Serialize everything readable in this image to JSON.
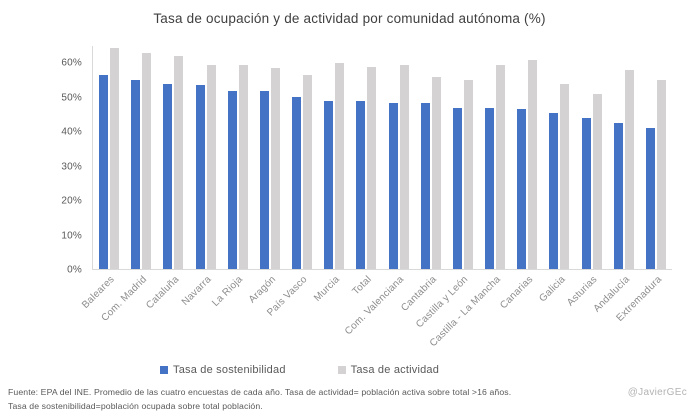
{
  "title": "Tasa de ocupación y de actividad por comunidad autónoma (%)",
  "chart_data": {
    "type": "bar",
    "title": "Tasa de ocupación y de actividad por comunidad autónoma (%)",
    "categories": [
      "Baleares",
      "Com. Madrid",
      "Cataluña",
      "Navarra",
      "La Rioja",
      "Aragón",
      "País Vasco",
      "Murcia",
      "Total",
      "Com. Valenciana",
      "Cantabria",
      "Castilla y León",
      "Castilla - La Mancha",
      "Canarias",
      "Galicia",
      "Asturias",
      "Andalucía",
      "Extremadura"
    ],
    "series": [
      {
        "name": "Tasa de sostenibilidad",
        "color": "#4472C4",
        "values": [
          56.5,
          55,
          54,
          53.5,
          52,
          52,
          50,
          49,
          49,
          48.5,
          48.5,
          47,
          47,
          46.5,
          45.5,
          44,
          42.5,
          41
        ]
      },
      {
        "name": "Tasa de actividad",
        "color": "#D4D2D2",
        "values": [
          64.5,
          63,
          62,
          59.5,
          59.5,
          58.5,
          56.5,
          60,
          59,
          59.5,
          56,
          55,
          59.5,
          61,
          54,
          51,
          58,
          55
        ]
      }
    ],
    "xlabel": "",
    "ylabel": "",
    "ylim": [
      0,
      65
    ],
    "yticks": [
      0,
      10,
      20,
      30,
      40,
      50,
      60
    ],
    "ytick_labels": [
      "0%",
      "10%",
      "20%",
      "30%",
      "40%",
      "50%",
      "60%"
    ],
    "grid": false,
    "legend_position": "bottom"
  },
  "legend": {
    "items": [
      {
        "label": "Tasa de sostenibilidad",
        "color": "#4472C4"
      },
      {
        "label": "Tasa de actividad",
        "color": "#D4D2D2"
      }
    ]
  },
  "footer": {
    "line1": "Fuente: EPA del INE. Promedio de las cuatro encuestas de cada año. Tasa de actividad= población activa sobre total >16 años.",
    "line2": "Tasa de sostenibilidad=población ocupada sobre total población.",
    "credit": "@JavierGEc"
  },
  "colors": {
    "bar_blue": "#4472C4",
    "bar_gray": "#D4D2D2",
    "axis_line": "#d9d9d9",
    "title_text": "#3f3f3f",
    "tick_text": "#595959",
    "category_text": "#8c8c8c",
    "footer_text": "#595959",
    "credit_text": "#b3b3b3"
  }
}
